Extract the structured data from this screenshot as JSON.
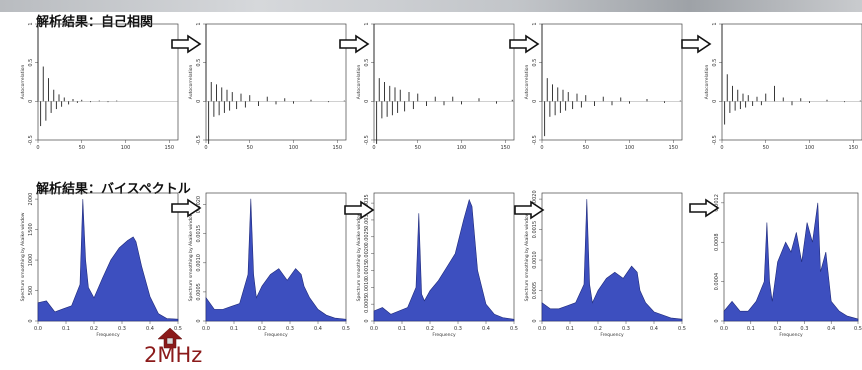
{
  "sections": {
    "autocorr_title": "解析結果：自己相関",
    "bispec_title": "解析結果：バイスペクトル"
  },
  "frequency_marker": {
    "label": "2MHz",
    "color": "#8b1a1a"
  },
  "colors": {
    "fill": "#3d4fbf",
    "stroke": "#1f2a7a",
    "line": "#222222"
  },
  "chart_data": [
    {
      "type": "line",
      "row": "autocorrelation",
      "ylabel": "Autocorrelation",
      "xlim": [
        0,
        160
      ],
      "ylim": [
        -0.5,
        1.0
      ],
      "xticks": [
        0,
        50,
        100,
        150
      ],
      "yticks": [
        -0.5,
        0.0,
        0.5,
        1.0
      ],
      "x": [
        0,
        3,
        6,
        9,
        12,
        15,
        18,
        21,
        24,
        27,
        30,
        35,
        40,
        45,
        50,
        60,
        70,
        80,
        90,
        100,
        120,
        140,
        158
      ],
      "y": [
        1.0,
        -0.32,
        0.45,
        -0.25,
        0.3,
        -0.15,
        0.15,
        -0.1,
        0.09,
        -0.07,
        0.05,
        -0.04,
        0.03,
        -0.02,
        0.02,
        -0.01,
        0.01,
        -0.01,
        0.01,
        0.0,
        0.0,
        0.0,
        0.0
      ]
    },
    {
      "type": "line",
      "row": "autocorrelation",
      "ylabel": "Autocorrelation",
      "xlim": [
        0,
        160
      ],
      "ylim": [
        -0.5,
        1.0
      ],
      "xticks": [
        0,
        50,
        100,
        150
      ],
      "yticks": [
        -0.5,
        0.0,
        0.5,
        1.0
      ],
      "x": [
        0,
        3,
        6,
        9,
        12,
        15,
        18,
        21,
        24,
        27,
        30,
        35,
        40,
        45,
        50,
        60,
        70,
        80,
        90,
        100,
        120,
        140,
        158
      ],
      "y": [
        1.0,
        -0.55,
        0.25,
        -0.2,
        0.22,
        -0.18,
        0.18,
        -0.15,
        0.15,
        -0.12,
        0.12,
        -0.1,
        0.1,
        -0.08,
        0.08,
        -0.06,
        0.06,
        -0.04,
        0.04,
        -0.03,
        0.02,
        -0.01,
        0.01
      ]
    },
    {
      "type": "line",
      "row": "autocorrelation",
      "ylabel": "Autocorrelation",
      "xlim": [
        0,
        160
      ],
      "ylim": [
        -0.5,
        1.0
      ],
      "xticks": [
        0,
        50,
        100,
        150
      ],
      "yticks": [
        -0.5,
        0.0,
        0.5,
        1.0
      ],
      "x": [
        0,
        3,
        6,
        9,
        12,
        15,
        18,
        21,
        24,
        27,
        30,
        35,
        40,
        45,
        50,
        60,
        70,
        80,
        90,
        100,
        120,
        140,
        158
      ],
      "y": [
        1.0,
        -0.55,
        0.3,
        -0.22,
        0.25,
        -0.2,
        0.2,
        -0.18,
        0.18,
        -0.15,
        0.15,
        -0.13,
        0.12,
        -0.1,
        0.1,
        -0.06,
        0.06,
        -0.05,
        0.06,
        -0.04,
        0.04,
        -0.03,
        0.02
      ]
    },
    {
      "type": "line",
      "row": "autocorrelation",
      "ylabel": "Autocorrelation",
      "xlim": [
        0,
        160
      ],
      "ylim": [
        -0.5,
        1.0
      ],
      "xticks": [
        0,
        50,
        100,
        150
      ],
      "yticks": [
        -0.5,
        0.0,
        0.5,
        1.0
      ],
      "x": [
        0,
        3,
        6,
        9,
        12,
        15,
        18,
        21,
        24,
        27,
        30,
        35,
        40,
        45,
        50,
        60,
        70,
        80,
        90,
        100,
        120,
        140,
        158
      ],
      "y": [
        1.0,
        -0.45,
        0.3,
        -0.2,
        0.22,
        -0.18,
        0.18,
        -0.15,
        0.15,
        -0.12,
        0.12,
        -0.1,
        0.1,
        -0.08,
        0.08,
        -0.06,
        0.06,
        -0.05,
        0.05,
        -0.03,
        0.03,
        -0.02,
        0.01
      ]
    },
    {
      "type": "line",
      "row": "autocorrelation",
      "ylabel": "Autocorrelation",
      "xlim": [
        0,
        160
      ],
      "ylim": [
        -0.5,
        1.0
      ],
      "xticks": [
        0,
        50,
        100,
        150
      ],
      "yticks": [
        -0.5,
        0.0,
        0.5,
        1.0
      ],
      "x": [
        0,
        3,
        6,
        9,
        12,
        15,
        18,
        21,
        24,
        27,
        30,
        35,
        40,
        45,
        50,
        60,
        70,
        80,
        90,
        100,
        120,
        140,
        158
      ],
      "y": [
        1.0,
        -0.3,
        0.35,
        -0.15,
        0.2,
        -0.12,
        0.15,
        -0.1,
        0.1,
        -0.08,
        0.08,
        -0.06,
        0.06,
        -0.05,
        0.1,
        0.2,
        0.05,
        -0.05,
        0.04,
        -0.02,
        0.02,
        -0.01,
        0.01
      ]
    },
    {
      "type": "area",
      "row": "bispectrum",
      "xlabel": "Frequency",
      "ylabel": "Spectrum smoothing by Akaike window",
      "xlim": [
        0,
        0.5
      ],
      "ylim": [
        0,
        2100
      ],
      "xticks": [
        0.0,
        0.1,
        0.2,
        0.3,
        0.4,
        0.5
      ],
      "yticks": [
        0,
        500,
        1000,
        1500,
        2000
      ],
      "x": [
        0,
        0.03,
        0.06,
        0.09,
        0.12,
        0.15,
        0.16,
        0.17,
        0.18,
        0.2,
        0.23,
        0.26,
        0.29,
        0.32,
        0.34,
        0.35,
        0.37,
        0.4,
        0.43,
        0.46,
        0.5
      ],
      "y": [
        300,
        330,
        150,
        200,
        250,
        600,
        2000,
        1000,
        550,
        380,
        700,
        1000,
        1200,
        1320,
        1380,
        1300,
        900,
        400,
        120,
        40,
        30
      ]
    },
    {
      "type": "area",
      "row": "bispectrum",
      "xlabel": "Frequency",
      "ylabel": "Spectrum smoothing by Akaike window",
      "xlim": [
        0,
        0.5
      ],
      "ylim": [
        0,
        0.0022
      ],
      "xticks": [
        0.0,
        0.1,
        0.2,
        0.3,
        0.4,
        0.5
      ],
      "yticks": [
        0.0,
        0.0005,
        0.001,
        0.0015,
        0.002
      ],
      "x": [
        0,
        0.03,
        0.06,
        0.09,
        0.12,
        0.15,
        0.16,
        0.17,
        0.18,
        0.2,
        0.23,
        0.26,
        0.29,
        0.32,
        0.34,
        0.35,
        0.37,
        0.4,
        0.43,
        0.46,
        0.5
      ],
      "y": [
        0.0004,
        0.0002,
        0.0002,
        0.00025,
        0.0003,
        0.0008,
        0.0021,
        0.0008,
        0.0004,
        0.0006,
        0.0008,
        0.0009,
        0.0007,
        0.0009,
        0.0008,
        0.0006,
        0.0004,
        0.0002,
        0.0001,
        5e-05,
        3e-05
      ]
    },
    {
      "type": "area",
      "row": "bispectrum",
      "xlabel": "Frequency",
      "ylabel": "Spectrum smoothing by Akaike window",
      "xlim": [
        0,
        0.5
      ],
      "ylim": [
        0,
        0.0038
      ],
      "xticks": [
        0.0,
        0.1,
        0.2,
        0.3,
        0.4,
        0.5
      ],
      "yticks": [
        0.0,
        0.0005,
        0.001,
        0.0015,
        0.002,
        0.0025,
        0.003,
        0.0035
      ],
      "x": [
        0,
        0.03,
        0.06,
        0.09,
        0.12,
        0.15,
        0.16,
        0.17,
        0.18,
        0.2,
        0.23,
        0.26,
        0.29,
        0.32,
        0.34,
        0.35,
        0.37,
        0.4,
        0.43,
        0.46,
        0.5
      ],
      "y": [
        0.0003,
        0.0004,
        0.0002,
        0.0003,
        0.0004,
        0.001,
        0.0032,
        0.0008,
        0.0006,
        0.0009,
        0.0012,
        0.0016,
        0.002,
        0.003,
        0.0036,
        0.0034,
        0.0015,
        0.0005,
        0.0002,
        0.0001,
        5e-05
      ]
    },
    {
      "type": "area",
      "row": "bispectrum",
      "xlabel": "Frequency",
      "ylabel": "Spectrum smoothing by Akaike window",
      "xlim": [
        0,
        0.5
      ],
      "ylim": [
        0,
        0.0021
      ],
      "xticks": [
        0.0,
        0.1,
        0.2,
        0.3,
        0.4,
        0.5
      ],
      "yticks": [
        0.0,
        0.0005,
        0.001,
        0.0015,
        0.002
      ],
      "x": [
        0,
        0.03,
        0.06,
        0.09,
        0.12,
        0.15,
        0.16,
        0.17,
        0.18,
        0.2,
        0.23,
        0.26,
        0.29,
        0.32,
        0.34,
        0.35,
        0.37,
        0.4,
        0.43,
        0.46,
        0.5
      ],
      "y": [
        0.0003,
        0.0002,
        0.0002,
        0.00025,
        0.0003,
        0.0006,
        0.002,
        0.0006,
        0.0003,
        0.0005,
        0.0007,
        0.0008,
        0.0007,
        0.0009,
        0.0008,
        0.0005,
        0.0003,
        0.00015,
        0.0001,
        5e-05,
        3e-05
      ]
    },
    {
      "type": "area",
      "row": "bispectrum",
      "xlabel": "Frequency",
      "ylabel": "",
      "xlim": [
        0,
        0.5
      ],
      "ylim": [
        0,
        0.0013
      ],
      "xticks": [
        0.0,
        0.1,
        0.2,
        0.3,
        0.4,
        0.5
      ],
      "yticks": [
        0.0,
        0.0004,
        0.0008,
        0.0012
      ],
      "x": [
        0,
        0.03,
        0.06,
        0.09,
        0.12,
        0.15,
        0.16,
        0.17,
        0.18,
        0.2,
        0.23,
        0.25,
        0.27,
        0.29,
        0.31,
        0.33,
        0.35,
        0.36,
        0.38,
        0.4,
        0.43,
        0.46,
        0.5
      ],
      "y": [
        0.0001,
        0.0002,
        0.0001,
        0.0001,
        0.0002,
        0.0004,
        0.001,
        0.0004,
        0.0002,
        0.0006,
        0.0008,
        0.0007,
        0.0009,
        0.0006,
        0.001,
        0.0008,
        0.0012,
        0.0005,
        0.0007,
        0.0002,
        0.0001,
        5e-05,
        2e-05
      ]
    }
  ]
}
